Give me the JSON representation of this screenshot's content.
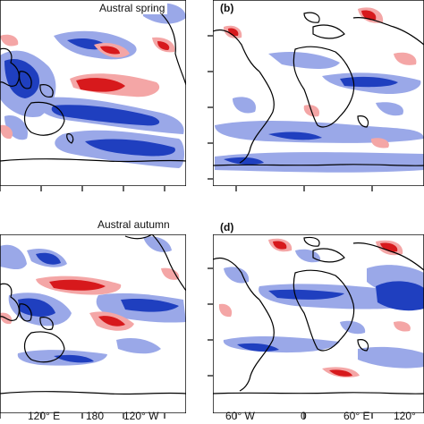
{
  "panels": {
    "a": {
      "title": "Austral spring",
      "letter": ""
    },
    "b": {
      "title": "",
      "letter": "(b)"
    },
    "c": {
      "title": "Austral autumn",
      "letter": ""
    },
    "d": {
      "title": "",
      "letter": "(d)"
    }
  },
  "x_ticks_left": [
    "120° E",
    "180",
    "120° W"
  ],
  "x_ticks_right": [
    "60° W",
    "0",
    "60° E",
    "120°"
  ],
  "colors": {
    "positive_strong": "#d7191c",
    "positive_light": "#f4a6a6",
    "negative_strong": "#1f3fbf",
    "negative_light": "#9aa8e8",
    "coastline": "#000000"
  }
}
